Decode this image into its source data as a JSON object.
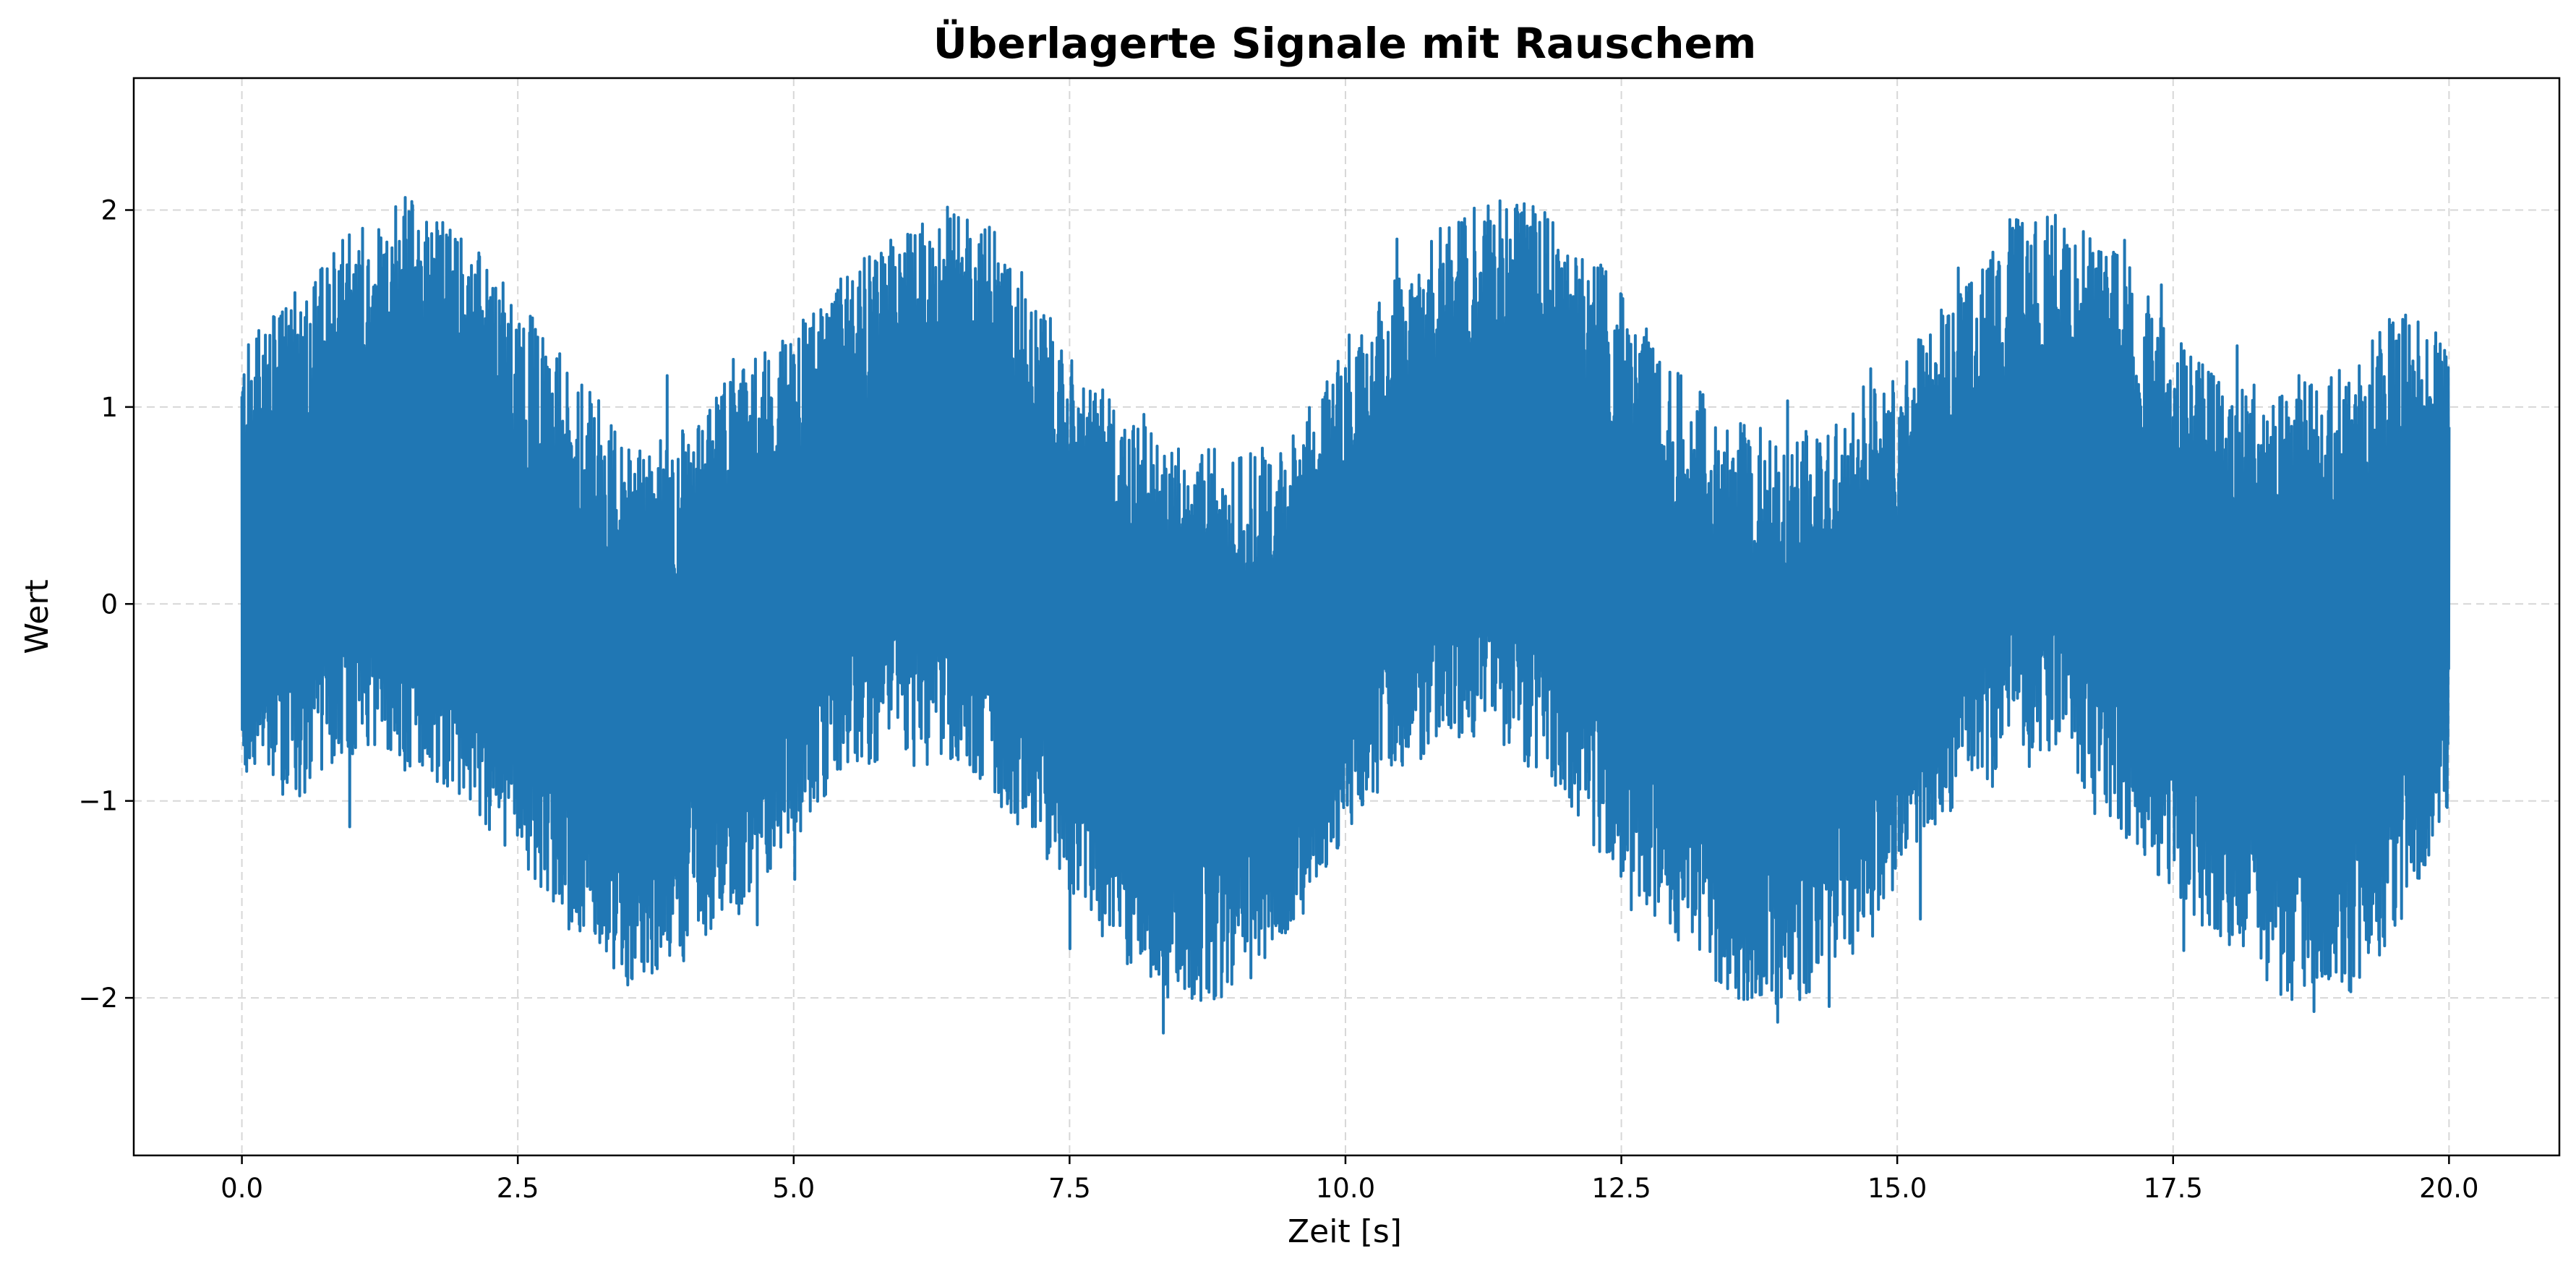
{
  "chart_data": {
    "type": "line",
    "title": "Überlagerte Signale mit Rauschem",
    "xlabel": "Zeit [s]",
    "ylabel": "Wert",
    "xlim": [
      -0.98,
      21.0
    ],
    "ylim": [
      -2.8,
      2.67
    ],
    "x_ticks": [
      0.0,
      2.5,
      5.0,
      7.5,
      10.0,
      12.5,
      15.0,
      17.5,
      20.0
    ],
    "x_tick_labels": [
      "0.0",
      "2.5",
      "5.0",
      "7.5",
      "10.0",
      "12.5",
      "15.0",
      "17.5",
      "20.0"
    ],
    "y_ticks": [
      -2,
      -1,
      0,
      1,
      2
    ],
    "y_tick_labels": [
      "−2",
      "−1",
      "0",
      "1",
      "2"
    ],
    "grid": true,
    "line_color": "#2077b4",
    "series": [
      {
        "x": [
          0.0,
          0.5,
          1.0,
          1.5,
          2.0,
          2.5,
          3.0,
          3.5,
          4.0,
          4.5,
          5.0,
          5.5,
          6.0,
          6.5,
          7.0,
          7.5,
          8.0,
          8.5,
          9.0,
          9.5,
          10.0,
          10.5,
          11.0,
          11.5,
          12.0,
          12.5,
          13.0,
          13.5,
          14.0,
          14.5,
          15.0,
          15.5,
          16.0,
          16.5,
          17.0,
          17.5,
          18.0,
          18.5,
          19.0,
          19.5,
          20.0
        ],
        "upper": [
          1.3,
          1.6,
          1.9,
          2.1,
          1.9,
          1.55,
          1.2,
          0.8,
          0.9,
          1.2,
          1.4,
          1.7,
          1.9,
          2.05,
          1.8,
          1.3,
          0.95,
          0.85,
          0.75,
          0.85,
          1.3,
          1.7,
          2.0,
          2.1,
          1.95,
          1.6,
          1.2,
          0.95,
          0.85,
          0.95,
          1.2,
          1.6,
          1.95,
          2.0,
          1.8,
          1.4,
          1.1,
          1.15,
          1.2,
          1.5,
          1.35
        ],
        "lower": [
          -0.9,
          -1.0,
          -0.8,
          -0.85,
          -1.0,
          -1.3,
          -1.7,
          -1.95,
          -1.8,
          -1.55,
          -1.2,
          -0.85,
          -0.75,
          -0.8,
          -1.1,
          -1.45,
          -1.85,
          -2.05,
          -2.0,
          -1.7,
          -1.2,
          -0.85,
          -0.7,
          -0.75,
          -1.05,
          -1.4,
          -1.7,
          -2.0,
          -2.1,
          -1.8,
          -1.45,
          -1.05,
          -0.85,
          -0.8,
          -1.15,
          -1.5,
          -1.75,
          -2.05,
          -2.05,
          -1.7,
          -1.1
        ]
      }
    ]
  }
}
